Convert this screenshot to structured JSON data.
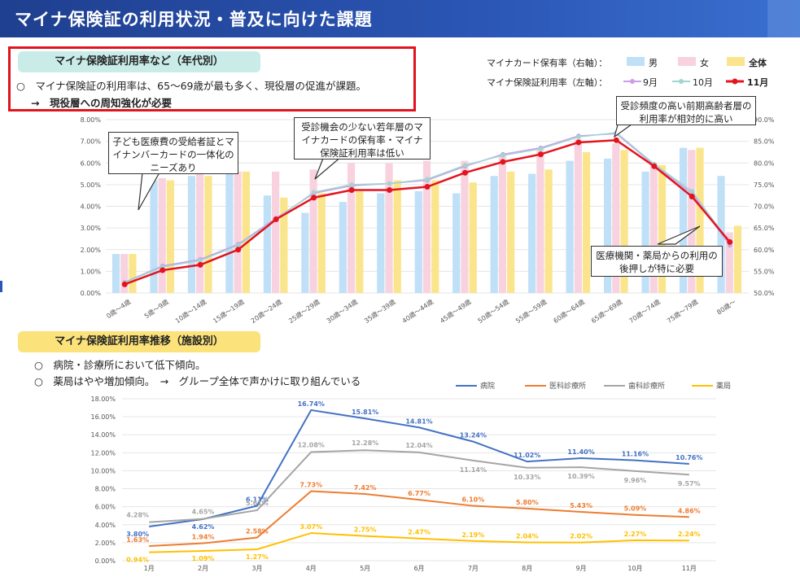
{
  "header": {
    "title": "マイナ保険証の利用状況・普及に向けた課題"
  },
  "section1": {
    "pill": "マイナ保険証利用率など（年代別）",
    "bullet": "○　マイナ保険証の利用率は、65～69歳が最も多く、現役層の促進が課題。",
    "sub": "→　現役層への周知強化が必要"
  },
  "legend1": {
    "row1_label": "マイナカード保有率（右軸）：",
    "row2_label": "マイナ保険証利用率（左軸）：",
    "male": "男",
    "female": "女",
    "total": "全体",
    "sep": "9月",
    "oct": "10月",
    "nov": "11月"
  },
  "callouts": {
    "children": "子ども医療費の受給者証とマイナンバーカードの一体化のニーズあり",
    "young": "受診機会の少ない若年層のマイナカードの保有率・マイナ保険証利用率は低い",
    "elderly": "受診頻度の高い前期高齢者層の利用率が相対的に高い",
    "medical": "医療機関・薬局からの利用の後押しが特に必要"
  },
  "section2": {
    "pill": "マイナ保険証利用率推移（施設別）",
    "bullet1": "○　病院・診療所において低下傾向。",
    "bullet2": "○　薬局はやや増加傾向。　→　グループ全体で声かけに取り組んでいる"
  },
  "colors": {
    "male": "#bfe0f7",
    "female": "#f8d3df",
    "total": "#fbe58c",
    "sep": "#c9a0e8",
    "oct": "#9fd6d2",
    "nov": "#e3141e",
    "hospital": "#4472c4",
    "clinic": "#ed7d31",
    "dental": "#a5a5a5",
    "pharmacy": "#ffc000"
  },
  "chart_data": [
    {
      "type": "bar",
      "categories": [
        "0歳～4歳",
        "5歳～9歳",
        "10歳～14歳",
        "15歳～19歳",
        "20歳～24歳",
        "25歳～29歳",
        "30歳～34歳",
        "35歳～39歳",
        "40歳～44歳",
        "45歳～49歳",
        "50歳～54歳",
        "55歳～59歳",
        "60歳～64歳",
        "65歳～69歳",
        "70歳～74歳",
        "75歳～79歳",
        "80歳～"
      ],
      "left_axis": {
        "ticks": [
          "0.00%",
          "1.00%",
          "2.00%",
          "3.00%",
          "4.00%",
          "5.00%",
          "6.00%",
          "7.00%",
          "8.00%"
        ],
        "ylim": [
          0,
          8
        ]
      },
      "right_axis": {
        "ticks": [
          "50.0%",
          "55.0%",
          "60.0%",
          "65.0%",
          "70.0%",
          "75.0%",
          "80.0%",
          "85.0%",
          "90.0%"
        ],
        "ylim": [
          50,
          90
        ]
      },
      "bar_series": [
        {
          "name": "男",
          "axis": "right",
          "values": [
            59.0,
            76.0,
            77.0,
            78.0,
            72.5,
            68.5,
            71.0,
            73.0,
            73.5,
            73.0,
            77.0,
            77.5,
            80.5,
            81.0,
            78.0,
            83.5,
            77.0
          ]
        },
        {
          "name": "女",
          "axis": "right",
          "values": [
            59.0,
            76.5,
            77.5,
            78.0,
            78.0,
            78.5,
            80.0,
            80.0,
            80.5,
            80.5,
            82.0,
            83.5,
            85.5,
            84.5,
            80.0,
            83.0,
            64.0
          ]
        },
        {
          "name": "全体",
          "axis": "right",
          "values": [
            59.0,
            76.0,
            77.0,
            78.0,
            72.0,
            73.0,
            73.5,
            76.0,
            76.0,
            75.5,
            78.0,
            78.5,
            82.5,
            83.0,
            79.5,
            83.5,
            65.5
          ]
        }
      ],
      "line_series": [
        {
          "name": "9月",
          "axis": "left",
          "values": [
            0.5,
            1.25,
            1.55,
            2.25,
            3.45,
            4.6,
            4.95,
            5.05,
            5.2,
            5.85,
            6.4,
            6.7,
            7.25,
            7.35,
            5.9,
            4.6,
            2.2
          ]
        },
        {
          "name": "10月",
          "axis": "left",
          "values": [
            0.48,
            1.2,
            1.5,
            2.2,
            3.4,
            4.65,
            5.0,
            5.05,
            5.25,
            5.9,
            6.35,
            6.65,
            7.2,
            7.4,
            5.95,
            4.7,
            2.3
          ]
        },
        {
          "name": "11月",
          "axis": "left",
          "values": [
            0.4,
            1.05,
            1.3,
            2.0,
            3.4,
            4.4,
            4.75,
            4.75,
            4.9,
            5.55,
            6.05,
            6.4,
            6.95,
            7.05,
            5.85,
            4.45,
            2.35
          ]
        }
      ]
    },
    {
      "type": "line",
      "categories": [
        "1月",
        "2月",
        "3月",
        "4月",
        "5月",
        "6月",
        "7月",
        "8月",
        "9月",
        "10月",
        "11月"
      ],
      "y_ticks": [
        "0.00%",
        "2.00%",
        "4.00%",
        "6.00%",
        "8.00%",
        "10.00%",
        "12.00%",
        "14.00%",
        "16.00%",
        "18.00%"
      ],
      "ylim": [
        0,
        18
      ],
      "series": [
        {
          "name": "病院",
          "values": [
            3.8,
            4.62,
            6.11,
            16.74,
            15.81,
            14.81,
            13.24,
            11.02,
            11.4,
            11.16,
            10.76
          ],
          "labels": [
            "3.80%",
            "4.62%",
            "6.11%",
            "16.74%",
            "15.81%",
            "14.81%",
            "13.24%",
            "11.02%",
            "11.40%",
            "11.16%",
            "10.76%"
          ]
        },
        {
          "name": "医科診療所",
          "values": [
            1.63,
            1.94,
            2.58,
            7.73,
            7.42,
            6.77,
            6.1,
            5.8,
            5.43,
            5.09,
            4.86
          ],
          "labels": [
            "1.63%",
            "1.94%",
            "2.58%",
            "7.73%",
            "7.42%",
            "6.77%",
            "6.10%",
            "5.80%",
            "5.43%",
            "5.09%",
            "4.86%"
          ]
        },
        {
          "name": "歯科診療所",
          "values": [
            4.28,
            4.65,
            5.61,
            12.08,
            12.28,
            12.04,
            11.14,
            10.33,
            10.39,
            9.96,
            9.57
          ],
          "labels": [
            "4.28%",
            "4.65%",
            "5.61%",
            "12.08%",
            "12.28%",
            "12.04%",
            "11.14%",
            "10.33%",
            "10.39%",
            "9.96%",
            "9.57%"
          ]
        },
        {
          "name": "薬局",
          "values": [
            0.94,
            1.09,
            1.27,
            3.07,
            2.75,
            2.47,
            2.19,
            2.04,
            2.02,
            2.27,
            2.24
          ],
          "labels": [
            "0.94%",
            "1.09%",
            "1.27%",
            "3.07%",
            "2.75%",
            "2.47%",
            "2.19%",
            "2.04%",
            "2.02%",
            "2.27%",
            "2.24%"
          ]
        }
      ]
    }
  ]
}
